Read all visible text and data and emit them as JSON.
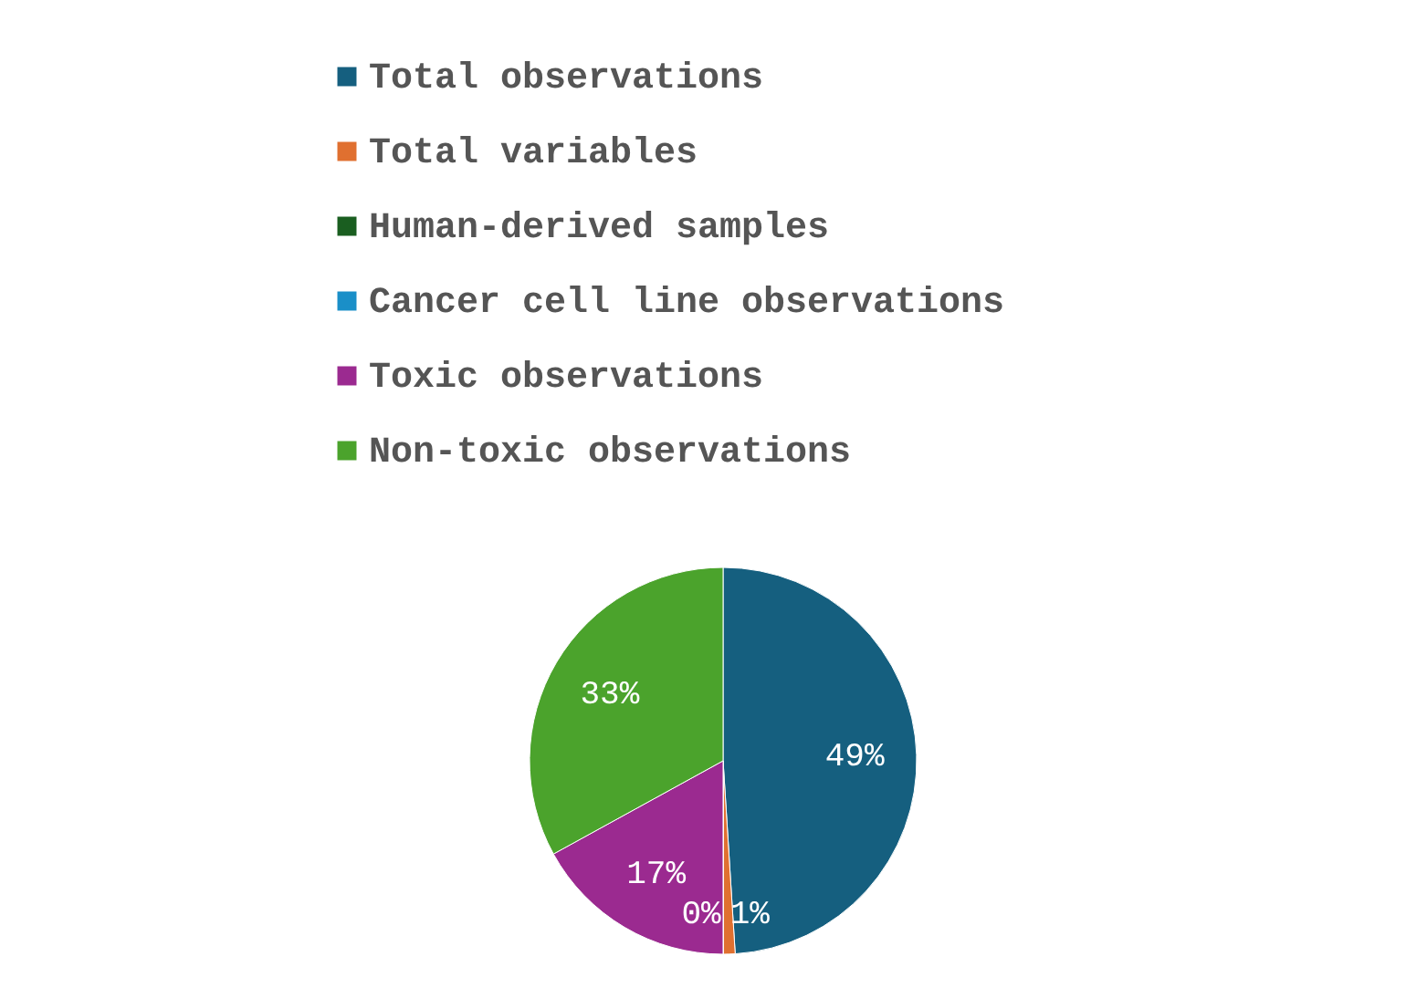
{
  "chart_data": {
    "type": "pie",
    "categories": [
      "Total observations",
      "Total variables",
      "Human-derived samples",
      "Cancer cell line observations",
      "Toxic observations",
      "Non-toxic observations"
    ],
    "values": [
      49,
      1,
      0,
      0,
      17,
      33
    ],
    "colors": [
      "#155f7f",
      "#e07030",
      "#1a5e20",
      "#1a8fc8",
      "#9b2a90",
      "#4ba32c"
    ],
    "value_labels": [
      "49%",
      "1%",
      "0%",
      null,
      "17%",
      "33%"
    ],
    "legend": "top"
  }
}
